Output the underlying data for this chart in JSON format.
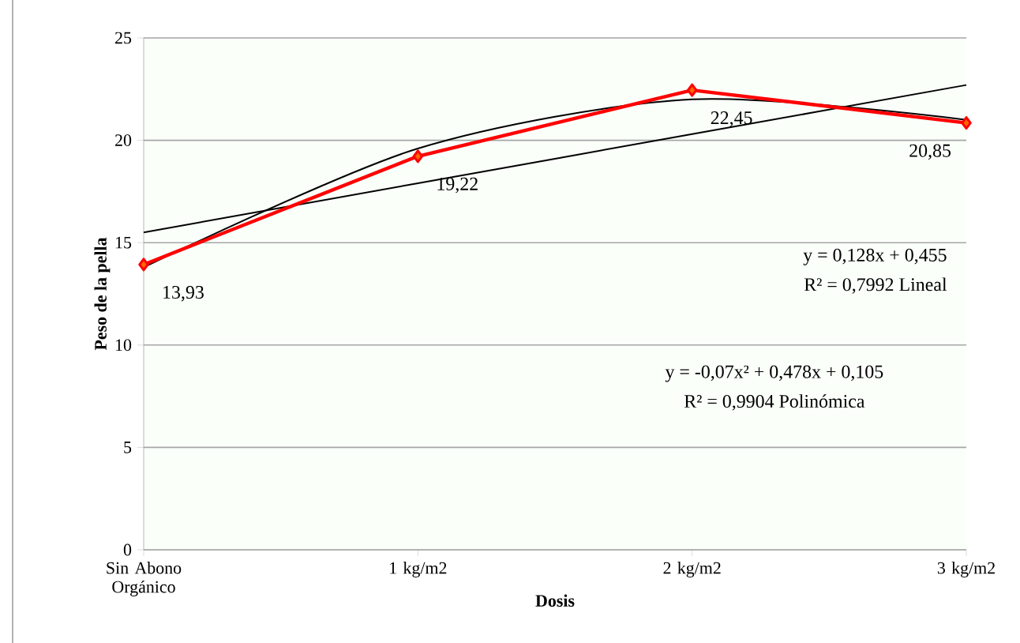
{
  "chart_data": {
    "type": "line",
    "xlabel": "Dosis",
    "ylabel": "Peso de la pella",
    "categories": [
      "Sin Abono Orgánico",
      "1 kg/m2",
      "2 kg/m2",
      "3 kg/m2"
    ],
    "ylim": [
      0,
      25
    ],
    "yticks": [
      0,
      5,
      10,
      15,
      20,
      25
    ],
    "grid": "y",
    "series": [
      {
        "color": "#ff0000",
        "marker": "diamond",
        "values": [
          13.93,
          19.22,
          22.45,
          20.85
        ],
        "value_labels": [
          "13,93",
          "19,22",
          "22,45",
          "20,85"
        ]
      },
      {
        "color": "#000000",
        "marker": "none",
        "values": [
          15.5,
          17.9,
          20.3,
          22.7
        ]
      },
      {
        "color": "#000000",
        "marker": "none",
        "values": [
          13.8,
          19.6,
          22.0,
          21.0
        ]
      }
    ],
    "annotations": [
      "y = 0,128x + 0,455",
      "R² = 0,7992 Lineal",
      "y = -0,07x² + 0,478x + 0,105",
      "R² = 0,9904 Polinómica"
    ]
  }
}
